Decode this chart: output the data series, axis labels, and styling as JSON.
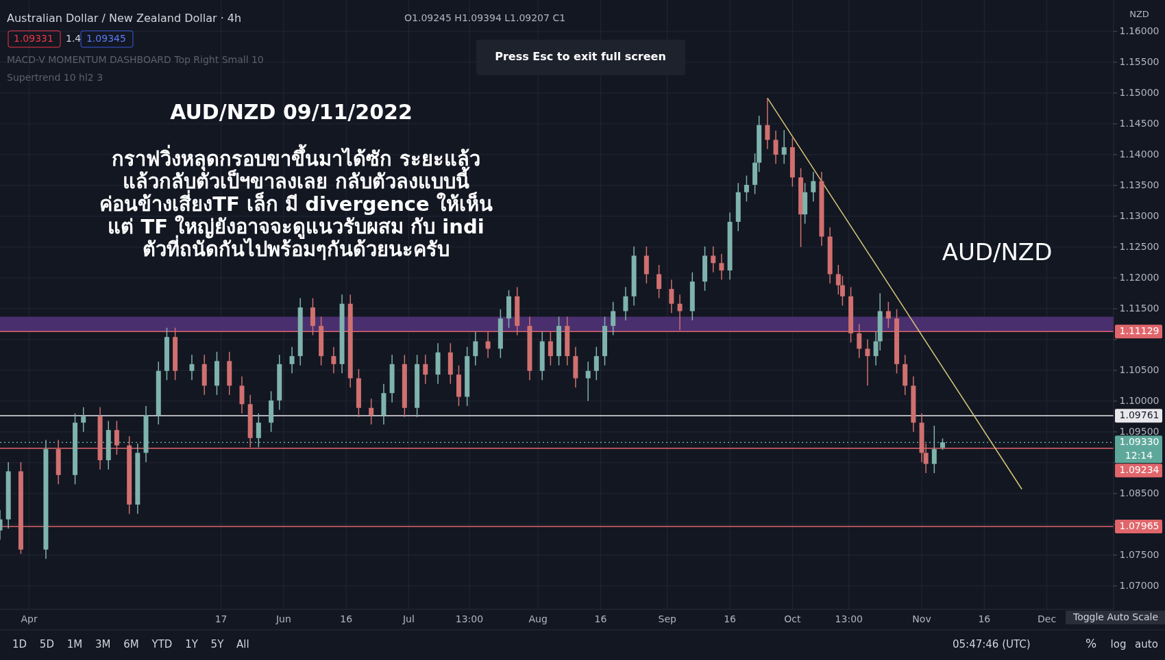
{
  "chart_data": {
    "type": "candlestick",
    "title": "AUD/NZD 09/11/2022",
    "subtitle": "กราฟวิ่งหลุดกรอบขาขึ้นมาได้ซัก ระยะแล้ว\nแล้วกลับตัวเป็ฯขาลงเลย กลับตัวลงแบบนี้\nค่อนข้างเสี่ยงTF เล็ก มี divergence ให้เห็น\nแต่ TF ใหญ่ยังอาจจะดูแนวรับผสม กับ indi\nตัวที่ถนัดกันไปพร้อมๆกันด้วยนะครับ",
    "ylabel": "NZD",
    "annotations": [
      "Australian Dollar / New Zealand Dollar · 4h",
      "O1.09245 H1.09394 L1.09207 C1",
      "1.09331",
      "1.4",
      "1.09345",
      "MACD-V MOMENTUM DASHBOARD Top Right Small 10",
      "Supertrend 10 hl2 3",
      "Press Esc to exit full screen",
      "AUD/NZD",
      "12:14",
      "1D 5D 1M 3M 6M YTD 1Y 5Y All",
      "05:47:46 (UTC)",
      "%",
      "log",
      "auto",
      "Toggle Auto Scale"
    ],
    "x": [
      "2022-03-25",
      "2022-03-27",
      "2022-03-30",
      "2022-04-05",
      "2022-04-08",
      "2022-04-12",
      "2022-04-14",
      "2022-04-18",
      "2022-04-20",
      "2022-04-22",
      "2022-04-25",
      "2022-04-27",
      "2022-04-29",
      "2022-05-02",
      "2022-05-04",
      "2022-05-06",
      "2022-05-10",
      "2022-05-13",
      "2022-05-16",
      "2022-05-19",
      "2022-05-22",
      "2022-05-24",
      "2022-05-26",
      "2022-05-29",
      "2022-05-31",
      "2022-06-03",
      "2022-06-05",
      "2022-06-08",
      "2022-06-10",
      "2022-06-13",
      "2022-06-15",
      "2022-06-17",
      "2022-06-19",
      "2022-06-22",
      "2022-06-25",
      "2022-06-27",
      "2022-06-30",
      "2022-07-03",
      "2022-07-05",
      "2022-07-08",
      "2022-07-11",
      "2022-07-13",
      "2022-07-15",
      "2022-07-17",
      "2022-07-20",
      "2022-07-23",
      "2022-07-25",
      "2022-07-27",
      "2022-07-30",
      "2022-08-02",
      "2022-08-04",
      "2022-08-06",
      "2022-08-08",
      "2022-08-10",
      "2022-08-13",
      "2022-08-15",
      "2022-08-17",
      "2022-08-19",
      "2022-08-22",
      "2022-08-24",
      "2022-08-27",
      "2022-08-30",
      "2022-09-02",
      "2022-09-04",
      "2022-09-07",
      "2022-09-10",
      "2022-09-12",
      "2022-09-14",
      "2022-09-16",
      "2022-09-18",
      "2022-09-20",
      "2022-09-22",
      "2022-09-23",
      "2022-09-25",
      "2022-09-27",
      "2022-09-29",
      "2022-10-01",
      "2022-10-03",
      "2022-10-04",
      "2022-10-06",
      "2022-10-08",
      "2022-10-10",
      "2022-10-12",
      "2022-10-13",
      "2022-10-15",
      "2022-10-17",
      "2022-10-19",
      "2022-10-21",
      "2022-10-22",
      "2022-10-24",
      "2022-10-26",
      "2022-10-28",
      "2022-10-30",
      "2022-11-01",
      "2022-11-02",
      "2022-11-04",
      "2022-11-06"
    ],
    "ohlc": [
      [
        1.079,
        1.0823,
        1.0775,
        1.0808
      ],
      [
        1.0808,
        1.0901,
        1.0793,
        1.0886
      ],
      [
        1.0886,
        1.0901,
        1.0752,
        1.0759
      ],
      [
        1.0759,
        1.0937,
        1.0744,
        1.0922
      ],
      [
        1.0922,
        1.0937,
        1.0865,
        1.088
      ],
      [
        1.088,
        1.098,
        1.0865,
        1.0965
      ],
      [
        1.0965,
        1.099,
        1.095,
        1.0975
      ],
      [
        1.0975,
        1.099,
        1.0889,
        1.0904
      ],
      [
        1.0904,
        1.0968,
        1.0889,
        1.0953
      ],
      [
        1.0953,
        1.0968,
        1.0913,
        1.0928
      ],
      [
        1.0928,
        1.0943,
        1.0817,
        1.0832
      ],
      [
        1.0832,
        1.0931,
        1.0817,
        1.0916
      ],
      [
        1.0916,
        1.0992,
        1.0901,
        1.0977
      ],
      [
        1.0977,
        1.1064,
        1.0962,
        1.1049
      ],
      [
        1.1049,
        1.1119,
        1.1034,
        1.1104
      ],
      [
        1.1104,
        1.1119,
        1.1034,
        1.1049
      ],
      [
        1.1049,
        1.1075,
        1.1034,
        1.106
      ],
      [
        1.106,
        1.1075,
        1.101,
        1.1025
      ],
      [
        1.1025,
        1.108,
        1.101,
        1.1065
      ],
      [
        1.1065,
        1.108,
        1.101,
        1.1025
      ],
      [
        1.1025,
        1.104,
        1.098,
        1.0995
      ],
      [
        1.0995,
        1.101,
        1.0925,
        1.094
      ],
      [
        1.094,
        1.098,
        1.0925,
        1.0965
      ],
      [
        1.0965,
        1.1016,
        1.095,
        1.1001
      ],
      [
        1.1001,
        1.1075,
        1.0986,
        1.106
      ],
      [
        1.106,
        1.1088,
        1.1045,
        1.1073
      ],
      [
        1.1073,
        1.1167,
        1.1058,
        1.1152
      ],
      [
        1.1152,
        1.1167,
        1.1107,
        1.1122
      ],
      [
        1.1122,
        1.1137,
        1.1058,
        1.1073
      ],
      [
        1.1073,
        1.1088,
        1.1045,
        1.106
      ],
      [
        1.106,
        1.1173,
        1.1045,
        1.1158
      ],
      [
        1.1158,
        1.1173,
        1.1022,
        1.1037
      ],
      [
        1.1037,
        1.1052,
        1.0974,
        1.0989
      ],
      [
        1.0989,
        1.1004,
        1.0962,
        1.0977
      ],
      [
        1.0977,
        1.1028,
        1.0962,
        1.1013
      ],
      [
        1.1013,
        1.1075,
        1.0998,
        1.106
      ],
      [
        1.106,
        1.1075,
        1.0974,
        1.0989
      ],
      [
        1.0989,
        1.1075,
        1.0974,
        1.106
      ],
      [
        1.106,
        1.1075,
        1.1028,
        1.1043
      ],
      [
        1.1043,
        1.1094,
        1.1028,
        1.1079
      ],
      [
        1.1079,
        1.1094,
        1.1028,
        1.1043
      ],
      [
        1.1043,
        1.1058,
        1.0992,
        1.1007
      ],
      [
        1.1007,
        1.1088,
        1.0992,
        1.1073
      ],
      [
        1.1073,
        1.1112,
        1.1058,
        1.1097
      ],
      [
        1.1097,
        1.1112,
        1.107,
        1.1085
      ],
      [
        1.1085,
        1.1149,
        1.107,
        1.1134
      ],
      [
        1.1134,
        1.118,
        1.1119,
        1.117
      ],
      [
        1.117,
        1.1185,
        1.1107,
        1.1122
      ],
      [
        1.1122,
        1.1137,
        1.1034,
        1.1049
      ],
      [
        1.1049,
        1.1112,
        1.1034,
        1.1097
      ],
      [
        1.1097,
        1.1112,
        1.1058,
        1.1073
      ],
      [
        1.1073,
        1.1137,
        1.1058,
        1.1122
      ],
      [
        1.1122,
        1.1137,
        1.1058,
        1.1073
      ],
      [
        1.1073,
        1.1088,
        1.1022,
        1.1037
      ],
      [
        1.1037,
        1.1064,
        1.1,
        1.1049
      ],
      [
        1.1049,
        1.1088,
        1.1034,
        1.1073
      ],
      [
        1.1073,
        1.1137,
        1.1058,
        1.1122
      ],
      [
        1.1122,
        1.1161,
        1.1107,
        1.1146
      ],
      [
        1.1146,
        1.1185,
        1.1131,
        1.117
      ],
      [
        1.117,
        1.1251,
        1.1155,
        1.1236
      ],
      [
        1.1236,
        1.1251,
        1.1191,
        1.1206
      ],
      [
        1.1206,
        1.1221,
        1.1167,
        1.1182
      ],
      [
        1.1182,
        1.1197,
        1.1143,
        1.1158
      ],
      [
        1.1158,
        1.1173,
        1.1115,
        1.1146
      ],
      [
        1.1146,
        1.1209,
        1.1131,
        1.1194
      ],
      [
        1.1194,
        1.1251,
        1.1179,
        1.1236
      ],
      [
        1.1236,
        1.1251,
        1.1209,
        1.1224
      ],
      [
        1.1224,
        1.1239,
        1.1197,
        1.1212
      ],
      [
        1.1212,
        1.1306,
        1.1197,
        1.1291
      ],
      [
        1.1291,
        1.1354,
        1.1276,
        1.1339
      ],
      [
        1.1339,
        1.1366,
        1.1324,
        1.1351
      ],
      [
        1.1351,
        1.1402,
        1.1336,
        1.1387
      ],
      [
        1.1387,
        1.1463,
        1.1372,
        1.1448
      ],
      [
        1.1448,
        1.1492,
        1.1409,
        1.1424
      ],
      [
        1.1424,
        1.1439,
        1.1385,
        1.14
      ],
      [
        1.14,
        1.144,
        1.1385,
        1.1412
      ],
      [
        1.1412,
        1.1427,
        1.1348,
        1.1363
      ],
      [
        1.1363,
        1.1378,
        1.125,
        1.1303
      ],
      [
        1.1303,
        1.1354,
        1.1288,
        1.1339
      ],
      [
        1.1339,
        1.1372,
        1.1324,
        1.1357
      ],
      [
        1.1357,
        1.1372,
        1.1252,
        1.1267
      ],
      [
        1.1267,
        1.1282,
        1.1191,
        1.1206
      ],
      [
        1.1206,
        1.1221,
        1.1173,
        1.1188
      ],
      [
        1.1188,
        1.1203,
        1.1155,
        1.117
      ],
      [
        1.117,
        1.1185,
        1.1095,
        1.111
      ],
      [
        1.111,
        1.1125,
        1.107,
        1.1085
      ],
      [
        1.1085,
        1.11,
        1.1025,
        1.1073
      ],
      [
        1.1073,
        1.1112,
        1.1058,
        1.1097
      ],
      [
        1.1097,
        1.1175,
        1.1082,
        1.1146
      ],
      [
        1.1146,
        1.1161,
        1.1119,
        1.1134
      ],
      [
        1.1134,
        1.1149,
        1.1045,
        1.106
      ],
      [
        1.106,
        1.1075,
        1.101,
        1.1025
      ],
      [
        1.1025,
        1.104,
        1.095,
        1.0965
      ],
      [
        1.0965,
        1.098,
        1.0901,
        1.0916
      ],
      [
        1.0916,
        1.0931,
        1.0883,
        1.0898
      ],
      [
        1.0898,
        1.096,
        1.0883,
        1.0922
      ],
      [
        1.09245,
        1.09394,
        1.09207,
        1.0933
      ]
    ],
    "series": [
      {
        "type": "line",
        "color": "#d8c878",
        "x": [
          "2022-09-25",
          "2022-11-25"
        ],
        "values": [
          1.1492,
          1.0857
        ]
      }
    ],
    "xlim": [
      "2022-03-25",
      "2022-12-17"
    ],
    "ylim": [
      1.0662,
      1.1651
    ],
    "xticks": [
      {
        "value": "2022-04-01",
        "label": "Apr"
      },
      {
        "value": "2022-05-17",
        "label": "17"
      },
      {
        "value": "2022-06-01",
        "label": "Jun"
      },
      {
        "value": "2022-06-16",
        "label": "16"
      },
      {
        "value": "2022-07-01",
        "label": "Jul"
      },
      {
        "value": "2022-07-15T13:00",
        "label": "13:00"
      },
      {
        "value": "2022-08-01",
        "label": "Aug"
      },
      {
        "value": "2022-08-16",
        "label": "16"
      },
      {
        "value": "2022-09-01",
        "label": "Sep"
      },
      {
        "value": "2022-09-16",
        "label": "16"
      },
      {
        "value": "2022-10-01",
        "label": "Oct"
      },
      {
        "value": "2022-10-14T13:00",
        "label": "13:00"
      },
      {
        "value": "2022-11-01",
        "label": "Nov"
      },
      {
        "value": "2022-11-16",
        "label": "16"
      },
      {
        "value": "2022-12-01",
        "label": "Dec"
      }
    ],
    "yticks": [
      {
        "value": 1.07,
        "label": "1.07000"
      },
      {
        "value": 1.075,
        "label": "1.07500"
      },
      {
        "value": 1.08,
        "label": null
      },
      {
        "value": 1.085,
        "label": "1.08500"
      },
      {
        "value": 1.09,
        "label": null
      },
      {
        "value": 1.095,
        "label": "1.09500"
      },
      {
        "value": 1.1,
        "label": "1.10000"
      },
      {
        "value": 1.105,
        "label": "1.10500"
      },
      {
        "value": 1.11,
        "label": null
      },
      {
        "value": 1.115,
        "label": "1.11500"
      },
      {
        "value": 1.12,
        "label": "1.12000"
      },
      {
        "value": 1.125,
        "label": "1.12500"
      },
      {
        "value": 1.13,
        "label": "1.13000"
      },
      {
        "value": 1.135,
        "label": "1.13500"
      },
      {
        "value": 1.14,
        "label": "1.14000"
      },
      {
        "value": 1.145,
        "label": "1.14500"
      },
      {
        "value": 1.15,
        "label": "1.15000"
      },
      {
        "value": 1.155,
        "label": "1.15500"
      },
      {
        "value": 1.16,
        "label": "1.16000"
      }
    ],
    "ref_lines": [
      {
        "axis": "y",
        "value": 1.11129,
        "label": "1.11129",
        "color": "#e0666b"
      },
      {
        "axis": "y",
        "value": 1.09761,
        "label": "1.09761",
        "color": "#e8e8ec"
      },
      {
        "axis": "y",
        "value": 1.0933,
        "label": "1.09330",
        "color": "#5ea89b",
        "line_style": "dotted"
      },
      {
        "axis": "y",
        "value": 1.09234,
        "label": "1.09234",
        "color": "#e0666b"
      },
      {
        "axis": "y",
        "value": 1.07965,
        "label": "1.07965",
        "color": "#e0666b"
      }
    ],
    "bands": [
      {
        "axis": "y",
        "from": 1.1113,
        "to": 1.1137,
        "color": "#4a2f6e"
      }
    ],
    "grid": true
  }
}
